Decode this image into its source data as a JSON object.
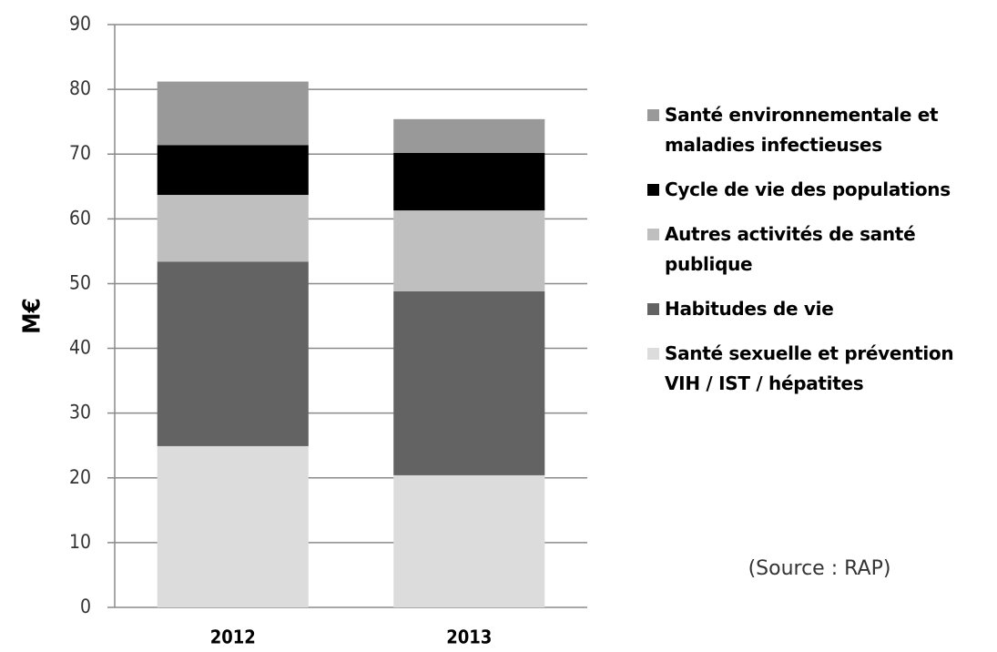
{
  "chart_data": {
    "type": "stacked_bar",
    "ylabel": "M€",
    "annotation": "(Source : RAP)",
    "categories": [
      "2012",
      "2013"
    ],
    "series": [
      {
        "name": "Santé sexuelle et prévention VIH / IST / hépatites",
        "color": "#dcdcdc",
        "values": [
          24.9,
          20.4
        ]
      },
      {
        "name": "Habitudes de vie",
        "color": "#636363",
        "values": [
          28.5,
          28.4
        ]
      },
      {
        "name": "Autres activités de santé publique",
        "color": "#bfbfbf",
        "values": [
          10.3,
          12.5
        ]
      },
      {
        "name": "Cycle de vie des populations",
        "color": "#000000",
        "values": [
          7.7,
          8.9
        ]
      },
      {
        "name": "Santé environnementale et maladies infectieuses",
        "color": "#999999",
        "values": [
          9.8,
          5.2
        ]
      }
    ],
    "ylim": [
      0,
      90
    ],
    "yticks": [
      0,
      10,
      20,
      30,
      40,
      50,
      60,
      70,
      80,
      90
    ],
    "grid": true,
    "legend": "right"
  }
}
